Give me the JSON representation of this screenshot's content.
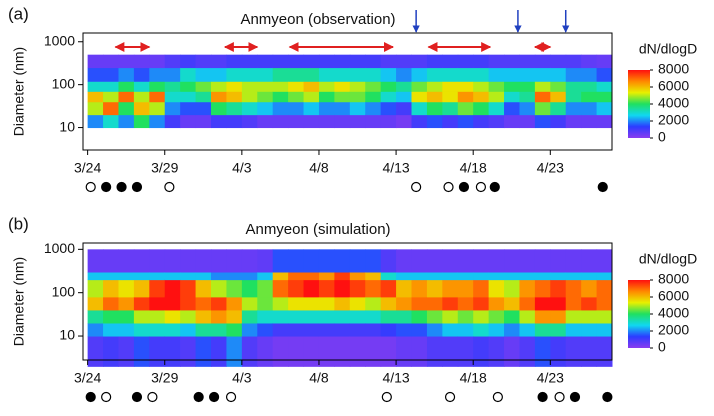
{
  "chart_data": [
    {
      "type": "heatmap",
      "panel_label": "(a)",
      "title": "Anmyeon (observation)",
      "y_label": "Diameter (nm)",
      "x": [
        0,
        1,
        2,
        3,
        4,
        5,
        6,
        7,
        8,
        9,
        10,
        11,
        12,
        13,
        14,
        15,
        16,
        17,
        18,
        19,
        20,
        21,
        22,
        23,
        24,
        25,
        26,
        27,
        28,
        29,
        30,
        31,
        32,
        33
      ],
      "y_bins": [
        10,
        20,
        40,
        70,
        120,
        250,
        500
      ],
      "values": [
        [
          2000,
          5000,
          6000,
          3000,
          1500,
          500
        ],
        [
          3000,
          7000,
          5000,
          3000,
          1500,
          500
        ],
        [
          2000,
          4000,
          7000,
          4000,
          2000,
          500
        ],
        [
          4000,
          6000,
          5000,
          3000,
          1500,
          500
        ],
        [
          2000,
          5000,
          7000,
          4000,
          2000,
          500
        ],
        [
          1000,
          2000,
          3000,
          3500,
          2000,
          800
        ],
        [
          500,
          1500,
          3000,
          4000,
          3000,
          1000
        ],
        [
          500,
          1500,
          3500,
          4500,
          2500,
          800
        ],
        [
          1000,
          4000,
          6500,
          5000,
          2500,
          800
        ],
        [
          1000,
          3500,
          6000,
          5500,
          3000,
          1000
        ],
        [
          800,
          3000,
          5000,
          5000,
          3000,
          1000
        ],
        [
          500,
          2500,
          4500,
          5000,
          3000,
          1000
        ],
        [
          500,
          2000,
          4000,
          5000,
          3500,
          1000
        ],
        [
          500,
          2000,
          4500,
          5500,
          3500,
          1000
        ],
        [
          500,
          2500,
          5000,
          6000,
          3500,
          1000
        ],
        [
          500,
          2000,
          4000,
          5000,
          3000,
          1000
        ],
        [
          500,
          2000,
          4500,
          5500,
          3000,
          1000
        ],
        [
          500,
          2500,
          4500,
          5000,
          3000,
          1000
        ],
        [
          500,
          2000,
          4000,
          4500,
          3000,
          1000
        ],
        [
          500,
          1500,
          3000,
          4000,
          2500,
          800
        ],
        [
          300,
          1000,
          2500,
          3500,
          2000,
          800
        ],
        [
          1000,
          3000,
          5500,
          4500,
          2500,
          800
        ],
        [
          1500,
          4000,
          6000,
          5000,
          3000,
          1000
        ],
        [
          1000,
          3500,
          5500,
          5500,
          3000,
          1000
        ],
        [
          1500,
          4500,
          6500,
          5500,
          3000,
          1000
        ],
        [
          1000,
          4000,
          6000,
          5000,
          3000,
          1000
        ],
        [
          800,
          3000,
          5000,
          4500,
          2500,
          800
        ],
        [
          500,
          1500,
          3000,
          4000,
          2500,
          800
        ],
        [
          500,
          2000,
          3500,
          4000,
          2500,
          800
        ],
        [
          1500,
          4500,
          7000,
          5000,
          2500,
          800
        ],
        [
          1000,
          3500,
          6000,
          4500,
          2500,
          800
        ],
        [
          500,
          2000,
          3500,
          3500,
          2000,
          800
        ],
        [
          500,
          2000,
          4000,
          3500,
          2000,
          600
        ],
        [
          500,
          2500,
          4000,
          3000,
          1500,
          500
        ]
      ],
      "xlim": [
        -0.3,
        34
      ],
      "xticks": [
        {
          "value": 0,
          "label": "3/24"
        },
        {
          "value": 5,
          "label": "3/29"
        },
        {
          "value": 10,
          "label": "4/3"
        },
        {
          "value": 15,
          "label": "4/8"
        },
        {
          "value": 20,
          "label": "4/13"
        },
        {
          "value": 25,
          "label": "4/18"
        },
        {
          "value": 30,
          "label": "4/23"
        }
      ],
      "ylim": [
        3,
        1600
      ],
      "yticks": [
        10,
        100,
        1000
      ],
      "log_y": true,
      "colorbar": {
        "label": "dN/dlogD",
        "lim": [
          0,
          8000
        ],
        "ticks": [
          0,
          2000,
          4000,
          6000,
          8000
        ]
      },
      "colormap": [
        "#8a3cf0",
        "#2c3cff",
        "#10d8f0",
        "#20e060",
        "#e8f000",
        "#ff8800",
        "#ff1010"
      ],
      "events": [
        {
          "x": 0.2,
          "filled": false
        },
        {
          "x": 1.2,
          "filled": true
        },
        {
          "x": 2.2,
          "filled": true
        },
        {
          "x": 3.2,
          "filled": true
        },
        {
          "x": 5.3,
          "filled": false
        },
        {
          "x": 21.3,
          "filled": false
        },
        {
          "x": 23.4,
          "filled": false
        },
        {
          "x": 24.4,
          "filled": true
        },
        {
          "x": 25.5,
          "filled": false
        },
        {
          "x": 26.4,
          "filled": true
        },
        {
          "x": 33.4,
          "filled": true
        }
      ],
      "periods": [
        [
          1.8,
          4.0
        ],
        [
          8.9,
          11.0
        ],
        [
          13.1,
          19.8
        ],
        [
          22.1,
          26.1
        ],
        [
          29.0,
          30.0
        ]
      ],
      "markers": [
        21.3,
        27.9,
        31.0
      ]
    },
    {
      "type": "heatmap",
      "panel_label": "(b)",
      "title": "Anmyeon (simulation)",
      "y_label": "Diameter (nm)",
      "x": [
        0,
        1,
        2,
        3,
        4,
        5,
        6,
        7,
        8,
        9,
        10,
        11,
        12,
        13,
        14,
        15,
        16,
        17,
        18,
        19,
        20,
        21,
        22,
        23,
        24,
        25,
        26,
        27,
        28,
        29,
        30,
        31,
        32,
        33
      ],
      "y_bins": [
        2,
        10,
        20,
        40,
        80,
        200,
        300,
        1000
      ],
      "values": [
        [
          800,
          2000,
          3500,
          6000,
          5000,
          2500,
          500
        ],
        [
          1000,
          2500,
          4000,
          7000,
          6000,
          2500,
          500
        ],
        [
          800,
          2500,
          4000,
          6500,
          5500,
          2500,
          500
        ],
        [
          1500,
          3000,
          5000,
          7500,
          6000,
          2500,
          500
        ],
        [
          1000,
          3000,
          5000,
          8000,
          7500,
          2500,
          500
        ],
        [
          1000,
          3000,
          5500,
          8000,
          8000,
          2500,
          500
        ],
        [
          800,
          2500,
          5000,
          7500,
          7500,
          2500,
          500
        ],
        [
          1500,
          3500,
          6000,
          7000,
          6000,
          2500,
          500
        ],
        [
          1000,
          3500,
          6500,
          7500,
          5000,
          2000,
          500
        ],
        [
          2000,
          4000,
          6000,
          6500,
          4500,
          2000,
          500
        ],
        [
          800,
          2000,
          3500,
          5000,
          4000,
          2000,
          500
        ],
        [
          500,
          1500,
          3000,
          4500,
          4500,
          2500,
          600
        ],
        [
          300,
          1000,
          3000,
          5000,
          7000,
          6000,
          1500
        ],
        [
          300,
          1000,
          3000,
          5500,
          7500,
          7000,
          1500
        ],
        [
          300,
          1000,
          3000,
          5500,
          8000,
          7000,
          1500
        ],
        [
          300,
          1000,
          3000,
          5500,
          7500,
          6500,
          1500
        ],
        [
          300,
          1000,
          3000,
          6000,
          8000,
          7500,
          1500
        ],
        [
          300,
          1000,
          3000,
          5500,
          7500,
          6500,
          1500
        ],
        [
          300,
          1000,
          3000,
          5000,
          7000,
          6000,
          1500
        ],
        [
          300,
          1200,
          3500,
          6000,
          7500,
          3000,
          800
        ],
        [
          500,
          1500,
          3500,
          6500,
          6000,
          2500,
          500
        ],
        [
          500,
          1500,
          4000,
          7000,
          6500,
          2500,
          500
        ],
        [
          800,
          2000,
          4500,
          7000,
          6000,
          2500,
          500
        ],
        [
          800,
          2500,
          5000,
          7500,
          6500,
          2500,
          500
        ],
        [
          800,
          2500,
          4500,
          7000,
          6500,
          2500,
          500
        ],
        [
          1000,
          3000,
          5000,
          7500,
          7000,
          2500,
          500
        ],
        [
          800,
          2500,
          4500,
          6500,
          5500,
          2500,
          500
        ],
        [
          500,
          2000,
          4000,
          6000,
          5000,
          2500,
          500
        ],
        [
          800,
          2500,
          5000,
          7000,
          6500,
          2500,
          500
        ],
        [
          1500,
          3500,
          6500,
          8000,
          7000,
          2500,
          500
        ],
        [
          1000,
          3500,
          6500,
          8000,
          7500,
          2500,
          500
        ],
        [
          800,
          2500,
          5000,
          7000,
          7000,
          2500,
          500
        ],
        [
          800,
          2500,
          5000,
          7500,
          6500,
          2500,
          500
        ],
        [
          800,
          2500,
          5000,
          7000,
          7000,
          2500,
          500
        ]
      ],
      "xlim": [
        -0.3,
        34
      ],
      "xticks": [
        {
          "value": 0,
          "label": "3/24"
        },
        {
          "value": 5,
          "label": "3/29"
        },
        {
          "value": 10,
          "label": "4/3"
        },
        {
          "value": 15,
          "label": "4/8"
        },
        {
          "value": 20,
          "label": "4/13"
        },
        {
          "value": 25,
          "label": "4/18"
        },
        {
          "value": 30,
          "label": "4/23"
        }
      ],
      "ylim": [
        2.8,
        1400
      ],
      "yticks": [
        10,
        100,
        1000
      ],
      "log_y": true,
      "colorbar": {
        "label": "dN/dlogD",
        "lim": [
          0,
          8000
        ],
        "ticks": [
          0,
          2000,
          4000,
          6000,
          8000
        ]
      },
      "colormap": [
        "#8a3cf0",
        "#2c3cff",
        "#10d8f0",
        "#20e060",
        "#e8f000",
        "#ff8800",
        "#ff1010"
      ],
      "events": [
        {
          "x": 0.2,
          "filled": true
        },
        {
          "x": 1.2,
          "filled": false
        },
        {
          "x": 3.2,
          "filled": true
        },
        {
          "x": 4.2,
          "filled": false
        },
        {
          "x": 7.2,
          "filled": true
        },
        {
          "x": 8.2,
          "filled": true
        },
        {
          "x": 9.3,
          "filled": false
        },
        {
          "x": 19.4,
          "filled": false
        },
        {
          "x": 23.5,
          "filled": false
        },
        {
          "x": 26.6,
          "filled": false
        },
        {
          "x": 29.5,
          "filled": true
        },
        {
          "x": 30.6,
          "filled": false
        },
        {
          "x": 31.6,
          "filled": true
        },
        {
          "x": 33.7,
          "filled": true
        }
      ]
    }
  ]
}
